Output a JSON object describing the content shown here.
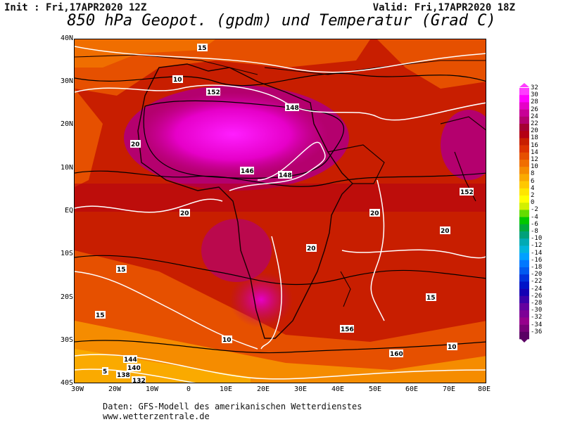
{
  "header": {
    "init": "Init : Fri,17APR2020 12Z",
    "valid": "Valid: Fri,17APR2020 18Z",
    "title": "850 hPa Geopot. (gpdm) und Temperatur (Grad C)"
  },
  "map": {
    "lat_labels": [
      "40N",
      "30N",
      "20N",
      "10N",
      "EQ",
      "10S",
      "20S",
      "30S",
      "40S"
    ],
    "lon_labels": [
      "30W",
      "20W",
      "10W",
      "0",
      "10E",
      "20E",
      "30E",
      "40E",
      "50E",
      "60E",
      "70E",
      "80E"
    ],
    "contour_labels": [
      {
        "t": "10"
      },
      {
        "t": "15"
      },
      {
        "t": "20"
      },
      {
        "t": "152"
      },
      {
        "t": "148"
      },
      {
        "t": "146"
      },
      {
        "t": "160"
      },
      {
        "t": "156"
      },
      {
        "t": "144"
      },
      {
        "t": "140"
      },
      {
        "t": "138"
      },
      {
        "t": "132"
      },
      {
        "t": "5"
      }
    ]
  },
  "legend": {
    "labels": [
      "32",
      "30",
      "28",
      "26",
      "24",
      "22",
      "20",
      "18",
      "16",
      "14",
      "12",
      "10",
      "8",
      "6",
      "4",
      "2",
      "0",
      "-2",
      "-4",
      "-6",
      "-8",
      "-10",
      "-12",
      "-14",
      "-16",
      "-18",
      "-20",
      "-22",
      "-24",
      "-26",
      "-28",
      "-30",
      "-32",
      "-34",
      "-36"
    ],
    "colors": [
      "#ff3cff",
      "#ff00ff",
      "#e600c8",
      "#c80096",
      "#b4006e",
      "#a50032",
      "#b40014",
      "#c81e00",
      "#dc3200",
      "#e65000",
      "#f06e00",
      "#f58c00",
      "#faaa00",
      "#ffc800",
      "#ffe600",
      "#ffff00",
      "#d2f000",
      "#64dc00",
      "#00c800",
      "#00aa3c",
      "#00a07a",
      "#00aab4",
      "#00b4dc",
      "#00a0ff",
      "#0078ff",
      "#005af0",
      "#0032dc",
      "#0014c8",
      "#1400b4",
      "#3c00aa",
      "#6400a0",
      "#7d0096",
      "#96008c",
      "#780078",
      "#5a0064"
    ]
  },
  "footer": {
    "line1": "Daten: GFS-Modell des amerikanischen Wetterdienstes",
    "line2": "www.wetterzentrale.de"
  }
}
